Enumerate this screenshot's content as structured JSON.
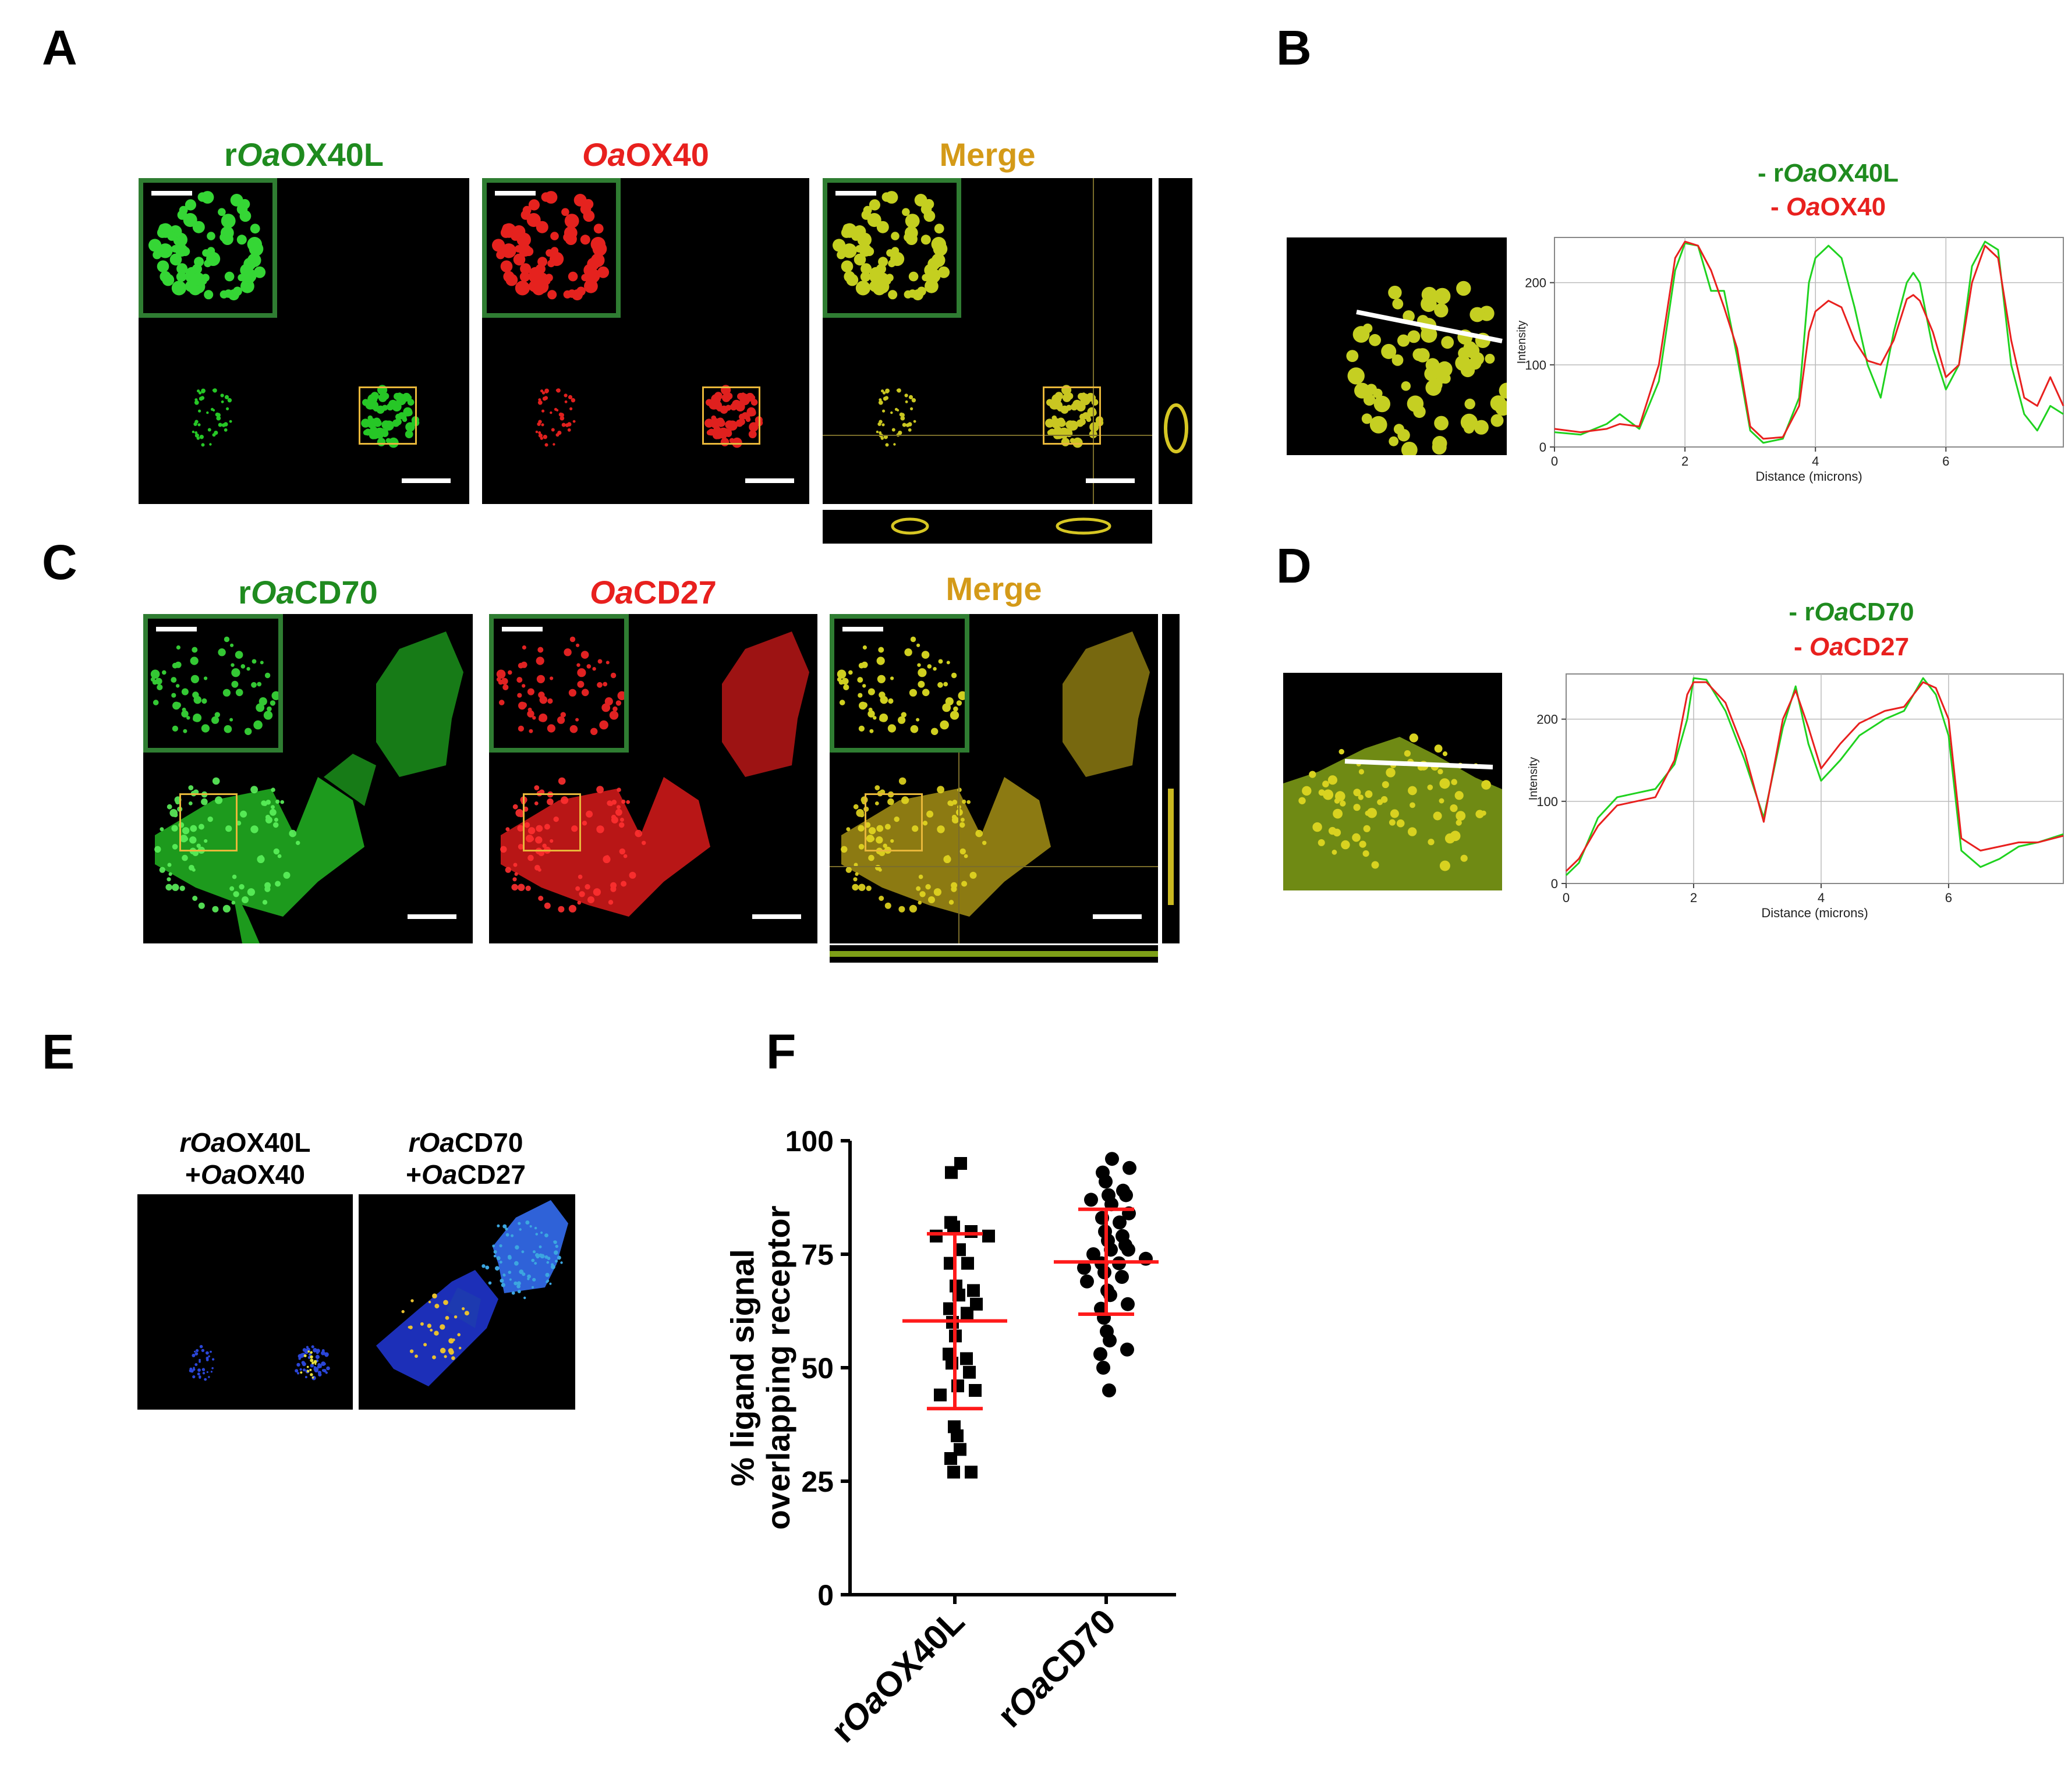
{
  "panels": {
    "A": {
      "label": "A",
      "titles": [
        {
          "pre": "r",
          "it": "Oa",
          "post": "OX40L",
          "color": "#1f8b1f"
        },
        {
          "pre": "",
          "it": "Oa",
          "post": "OX40",
          "color": "#e8201e"
        },
        {
          "pre": "",
          "it": "",
          "post": "Merge",
          "color": "#d49a18"
        }
      ]
    },
    "B": {
      "label": "B",
      "legend": [
        {
          "pre": "- r",
          "it": "Oa",
          "post": "OX40L",
          "color": "#1f8b1f"
        },
        {
          "pre": "- ",
          "it": "Oa",
          "post": "OX40",
          "color": "#e8201e"
        }
      ]
    },
    "C": {
      "label": "C",
      "titles": [
        {
          "pre": "r",
          "it": "Oa",
          "post": "CD70",
          "color": "#1f8b1f"
        },
        {
          "pre": "",
          "it": "Oa",
          "post": "CD27",
          "color": "#e8201e"
        },
        {
          "pre": "",
          "it": "",
          "post": "Merge",
          "color": "#d49a18"
        }
      ]
    },
    "D": {
      "label": "D",
      "legend": [
        {
          "pre": "- r",
          "it": "Oa",
          "post": "CD70",
          "color": "#1f8b1f"
        },
        {
          "pre": "- ",
          "it": "Oa",
          "post": "CD27",
          "color": "#e8201e"
        }
      ]
    },
    "E": {
      "label": "E",
      "titles": [
        {
          "l1": "rOaOX40L",
          "l2": "+OaOX40"
        },
        {
          "l1": "rOaCD70",
          "l2": "+OaCD27"
        }
      ]
    },
    "F": {
      "label": "F"
    }
  },
  "chart_data": [
    {
      "panel": "B",
      "type": "line",
      "xlabel": "Distance (microns)",
      "ylabel": "Intensity",
      "xlim": [
        0,
        7.8
      ],
      "ylim": [
        0,
        255
      ],
      "xticks": [
        0,
        2,
        4,
        6
      ],
      "yticks": [
        0,
        100,
        200
      ],
      "grid": true,
      "series": [
        {
          "color": "#1fd21f",
          "x": [
            0,
            0.4,
            0.8,
            1.0,
            1.3,
            1.6,
            1.85,
            2.0,
            2.2,
            2.4,
            2.6,
            2.8,
            3.0,
            3.2,
            3.5,
            3.75,
            3.9,
            4.0,
            4.2,
            4.4,
            4.6,
            4.8,
            5.0,
            5.2,
            5.4,
            5.5,
            5.6,
            5.8,
            6.0,
            6.2,
            6.4,
            6.6,
            6.8,
            7.0,
            7.2,
            7.4,
            7.6,
            7.8
          ],
          "y": [
            18,
            15,
            28,
            40,
            22,
            80,
            215,
            248,
            245,
            190,
            190,
            110,
            20,
            5,
            10,
            60,
            200,
            230,
            245,
            230,
            170,
            100,
            60,
            140,
            200,
            212,
            200,
            120,
            70,
            100,
            220,
            250,
            240,
            100,
            40,
            20,
            50,
            40
          ]
        },
        {
          "color": "#e8201e",
          "x": [
            0,
            0.4,
            0.8,
            1.0,
            1.3,
            1.6,
            1.85,
            2.0,
            2.2,
            2.4,
            2.6,
            2.8,
            3.0,
            3.2,
            3.5,
            3.75,
            3.9,
            4.0,
            4.2,
            4.4,
            4.6,
            4.8,
            5.0,
            5.2,
            5.4,
            5.5,
            5.6,
            5.8,
            6.0,
            6.2,
            6.4,
            6.6,
            6.8,
            7.0,
            7.2,
            7.4,
            7.6,
            7.8
          ],
          "y": [
            22,
            18,
            22,
            28,
            25,
            100,
            230,
            250,
            245,
            215,
            170,
            120,
            25,
            10,
            12,
            50,
            140,
            165,
            178,
            170,
            130,
            105,
            100,
            130,
            180,
            185,
            178,
            140,
            85,
            100,
            200,
            245,
            230,
            130,
            60,
            50,
            85,
            50
          ]
        }
      ]
    },
    {
      "panel": "D",
      "type": "line",
      "xlabel": "Distance (microns)",
      "ylabel": "Intensity",
      "xlim": [
        0,
        7.8
      ],
      "ylim": [
        0,
        255
      ],
      "xticks": [
        0,
        2,
        4,
        6
      ],
      "yticks": [
        0,
        100,
        200
      ],
      "grid": true,
      "series": [
        {
          "color": "#1fd21f",
          "x": [
            0,
            0.2,
            0.5,
            0.8,
            1.1,
            1.4,
            1.7,
            1.9,
            2.0,
            2.2,
            2.5,
            2.8,
            3.1,
            3.4,
            3.6,
            3.8,
            4.0,
            4.3,
            4.6,
            5.0,
            5.3,
            5.6,
            5.8,
            6.0,
            6.2,
            6.5,
            6.8,
            7.1,
            7.4,
            7.8
          ],
          "y": [
            10,
            25,
            80,
            105,
            110,
            115,
            145,
            200,
            250,
            248,
            210,
            150,
            80,
            190,
            240,
            170,
            125,
            150,
            180,
            200,
            210,
            250,
            230,
            180,
            40,
            20,
            30,
            45,
            50,
            60
          ]
        },
        {
          "color": "#e8201e",
          "x": [
            0,
            0.2,
            0.5,
            0.8,
            1.1,
            1.4,
            1.7,
            1.9,
            2.0,
            2.2,
            2.5,
            2.8,
            3.1,
            3.4,
            3.6,
            3.8,
            4.0,
            4.3,
            4.6,
            5.0,
            5.3,
            5.6,
            5.8,
            6.0,
            6.2,
            6.5,
            6.8,
            7.1,
            7.4,
            7.8
          ],
          "y": [
            15,
            30,
            70,
            95,
            100,
            105,
            150,
            230,
            245,
            245,
            220,
            160,
            75,
            200,
            235,
            190,
            140,
            170,
            195,
            210,
            215,
            245,
            238,
            200,
            55,
            40,
            45,
            50,
            50,
            58
          ]
        }
      ]
    },
    {
      "panel": "F",
      "type": "scatter",
      "ylabel": "% ligand signal overlapping receptor",
      "ylim": [
        0,
        100
      ],
      "yticks": [
        0,
        25,
        50,
        75,
        100
      ],
      "categories": [
        "rOaOX40L",
        "rOaCD70"
      ],
      "series": [
        {
          "name": "rOaOX40L",
          "marker": "square",
          "values": [
            95,
            93,
            82,
            81,
            80,
            79,
            79,
            76,
            73,
            73,
            68,
            67,
            66,
            64,
            63,
            62,
            60,
            57,
            53,
            52,
            51,
            49,
            46,
            45,
            44,
            37,
            35,
            32,
            30,
            27,
            27
          ],
          "mean": 60.3,
          "sd_low": 41.0,
          "sd_high": 79.5
        },
        {
          "name": "rOaCD70",
          "marker": "circle",
          "values": [
            96,
            94,
            93,
            91,
            89,
            88,
            88,
            87,
            86,
            84,
            83,
            82,
            80,
            79,
            78,
            77,
            76,
            76,
            75,
            74,
            73,
            73,
            72,
            71,
            70,
            69,
            67,
            66,
            64,
            63,
            61,
            58,
            56,
            54,
            53,
            50,
            45
          ],
          "mean": 73.3,
          "sd_low": 61.8,
          "sd_high": 84.9
        }
      ]
    }
  ]
}
